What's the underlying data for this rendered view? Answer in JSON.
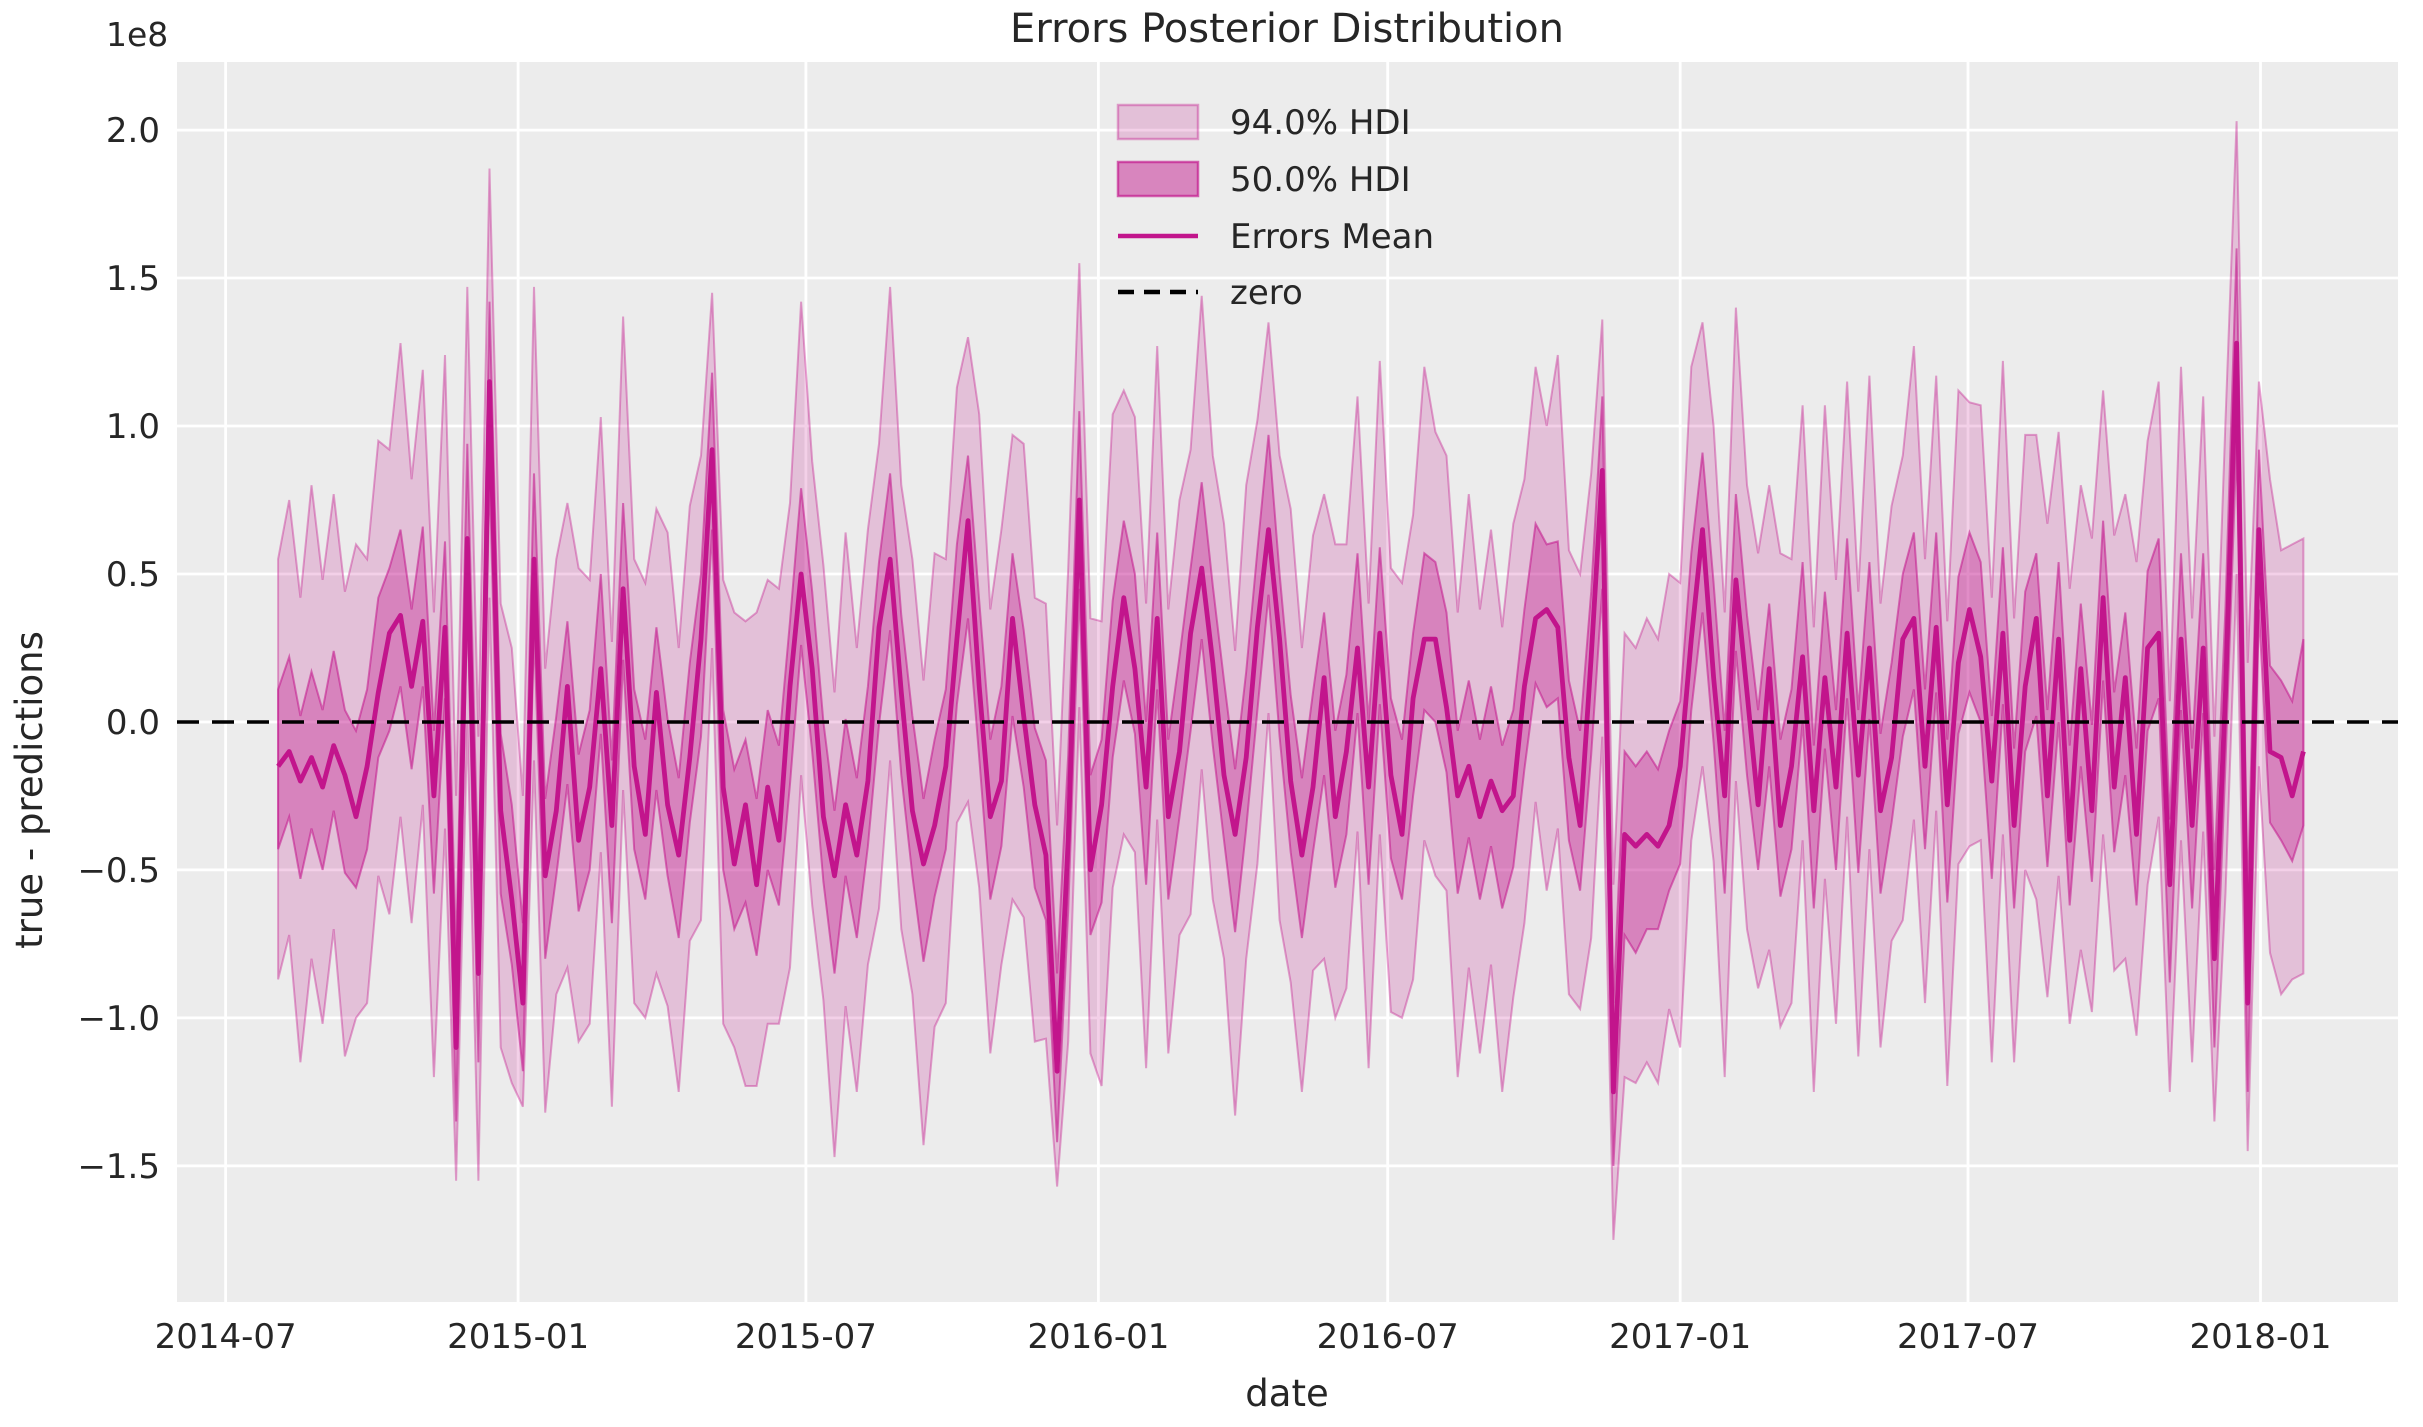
{
  "figure": {
    "title": "Errors Posterior Distribution",
    "xlabel": "date",
    "ylabel": "true - predictions",
    "y_offset_label": "1e8",
    "background_color": "#ffffff",
    "plot_background_color": "#ececec",
    "grid_color": "#ffffff",
    "text_color": "#262626",
    "accent_color": "#c2158c",
    "zero_line_color": "#000000"
  },
  "legend": {
    "items": [
      {
        "label": "94.0% HDI",
        "type": "patch",
        "color": "#c2158c",
        "opacity": 0.2
      },
      {
        "label": "50.0% HDI",
        "type": "patch",
        "color": "#c2158c",
        "opacity": 0.48
      },
      {
        "label": "Errors Mean",
        "type": "line",
        "color": "#c2158c",
        "opacity": 1
      },
      {
        "label": "zero",
        "type": "dashed-line",
        "color": "#000000",
        "opacity": 1
      }
    ]
  },
  "chart_data": {
    "type": "area",
    "title": "Errors Posterior Distribution",
    "xlabel": "date",
    "ylabel": "true - predictions",
    "y_unit": "1e8",
    "grid": true,
    "legend_position": "upper center-left",
    "x_start": "2014-08-03",
    "x_step_days": 7,
    "n_points": 183,
    "ylim": [
      -1.96,
      2.23
    ],
    "x_ticks": [
      {
        "label": "2014-07",
        "day_offset": -33
      },
      {
        "label": "2015-01",
        "day_offset": 151
      },
      {
        "label": "2015-07",
        "day_offset": 332
      },
      {
        "label": "2016-01",
        "day_offset": 516
      },
      {
        "label": "2016-07",
        "day_offset": 698
      },
      {
        "label": "2017-01",
        "day_offset": 882
      },
      {
        "label": "2017-07",
        "day_offset": 1063
      },
      {
        "label": "2018-01",
        "day_offset": 1247
      }
    ],
    "y_ticks": [
      {
        "label": "2.0",
        "value": 2.0
      },
      {
        "label": "1.5",
        "value": 1.5
      },
      {
        "label": "1.0",
        "value": 1.0
      },
      {
        "label": "0.5",
        "value": 0.5
      },
      {
        "label": "0.0",
        "value": 0.0
      },
      {
        "label": "−0.5",
        "value": -0.5
      },
      {
        "label": "−1.0",
        "value": -1.0
      },
      {
        "label": "−1.5",
        "value": -1.5
      }
    ],
    "series": [
      {
        "name": "Errors Mean",
        "type": "line",
        "values": [
          -0.15,
          -0.1,
          -0.2,
          -0.12,
          -0.22,
          -0.08,
          -0.18,
          -0.32,
          -0.15,
          0.1,
          0.3,
          0.36,
          0.12,
          0.34,
          -0.25,
          0.32,
          -1.1,
          0.62,
          -0.85,
          1.15,
          -0.3,
          -0.6,
          -0.95,
          0.55,
          -0.52,
          -0.3,
          0.12,
          -0.4,
          -0.22,
          0.18,
          -0.35,
          0.45,
          -0.15,
          -0.38,
          0.1,
          -0.28,
          -0.45,
          -0.12,
          0.28,
          0.92,
          -0.22,
          -0.48,
          -0.28,
          -0.55,
          -0.22,
          -0.4,
          0.12,
          0.5,
          0.18,
          -0.32,
          -0.52,
          -0.28,
          -0.45,
          -0.2,
          0.32,
          0.55,
          0.1,
          -0.3,
          -0.48,
          -0.35,
          -0.15,
          0.28,
          0.68,
          0.12,
          -0.32,
          -0.2,
          0.35,
          0.02,
          -0.28,
          -0.45,
          -1.18,
          -0.4,
          0.75,
          -0.5,
          -0.28,
          0.12,
          0.42,
          0.18,
          -0.22,
          0.35,
          -0.32,
          -0.1,
          0.3,
          0.52,
          0.2,
          -0.18,
          -0.38,
          -0.12,
          0.32,
          0.65,
          0.28,
          -0.2,
          -0.45,
          -0.22,
          0.15,
          -0.32,
          -0.1,
          0.25,
          -0.22,
          0.3,
          -0.18,
          -0.38,
          0.08,
          0.28,
          0.28,
          0.05,
          -0.25,
          -0.15,
          -0.32,
          -0.2,
          -0.3,
          -0.25,
          0.12,
          0.35,
          0.38,
          0.32,
          -0.12,
          -0.35,
          0.22,
          0.85,
          -1.25,
          -0.38,
          -0.42,
          -0.38,
          -0.42,
          -0.35,
          -0.15,
          0.28,
          0.65,
          0.15,
          -0.25,
          0.48,
          0.1,
          -0.28,
          0.18,
          -0.35,
          -0.15,
          0.22,
          -0.3,
          0.15,
          -0.22,
          0.3,
          -0.18,
          0.25,
          -0.3,
          -0.12,
          0.28,
          0.35,
          -0.15,
          0.32,
          -0.28,
          0.2,
          0.38,
          0.22,
          -0.2,
          0.3,
          -0.35,
          0.12,
          0.35,
          -0.25,
          0.28,
          -0.4,
          0.18,
          -0.3,
          0.42,
          -0.22,
          0.15,
          -0.38,
          0.25,
          0.3,
          -0.55,
          0.28,
          -0.35,
          0.25,
          -0.8,
          0.1,
          1.28,
          -0.95,
          0.65,
          -0.1,
          -0.12,
          -0.25,
          -0.1
        ]
      },
      {
        "name": "94.0% HDI",
        "type": "band",
        "upper": [
          0.55,
          0.75,
          0.42,
          0.8,
          0.48,
          0.77,
          0.44,
          0.6,
          0.55,
          0.95,
          0.92,
          1.28,
          0.82,
          1.19,
          0.37,
          1.24,
          -0.25,
          1.47,
          -0.05,
          1.87,
          0.4,
          0.25,
          -0.25,
          1.47,
          0.18,
          0.55,
          0.74,
          0.52,
          0.48,
          1.03,
          0.27,
          1.37,
          0.55,
          0.47,
          0.72,
          0.64,
          0.25,
          0.73,
          0.9,
          1.45,
          0.48,
          0.37,
          0.34,
          0.37,
          0.48,
          0.45,
          0.74,
          1.42,
          0.88,
          0.53,
          0.1,
          0.64,
          0.25,
          0.65,
          0.94,
          1.47,
          0.8,
          0.55,
          0.14,
          0.57,
          0.55,
          1.13,
          1.3,
          1.04,
          0.38,
          0.65,
          0.97,
          0.94,
          0.42,
          0.4,
          -0.35,
          0.52,
          1.55,
          0.35,
          0.34,
          1.04,
          1.12,
          1.03,
          0.4,
          1.27,
          0.38,
          0.75,
          0.92,
          1.44,
          0.9,
          0.67,
          0.24,
          0.8,
          1.02,
          1.35,
          0.9,
          0.72,
          0.25,
          0.63,
          0.77,
          0.6,
          0.6,
          1.1,
          0.4,
          1.22,
          0.52,
          0.47,
          0.7,
          1.2,
          0.98,
          0.9,
          0.37,
          0.77,
          0.38,
          0.65,
          0.32,
          0.67,
          0.82,
          1.2,
          1.0,
          1.24,
          0.58,
          0.5,
          0.84,
          1.36,
          -0.55,
          0.3,
          0.25,
          0.35,
          0.28,
          0.5,
          0.47,
          1.2,
          1.35,
          1.0,
          0.37,
          1.4,
          0.8,
          0.57,
          0.8,
          0.57,
          0.55,
          1.07,
          0.32,
          1.07,
          0.48,
          1.15,
          0.44,
          1.17,
          0.4,
          0.73,
          0.9,
          1.27,
          0.55,
          1.17,
          0.34,
          1.12,
          1.08,
          1.07,
          0.42,
          1.22,
          0.35,
          0.97,
          0.97,
          0.67,
          0.98,
          0.45,
          0.8,
          0.62,
          1.12,
          0.63,
          0.77,
          0.54,
          0.95,
          1.15,
          0.07,
          1.2,
          0.35,
          1.1,
          -0.05,
          1.02,
          2.03,
          0.2,
          1.15,
          0.82,
          0.58,
          0.6,
          0.62
        ],
        "lower": [
          -0.87,
          -0.72,
          -1.15,
          -0.8,
          -1.02,
          -0.7,
          -1.13,
          -1.0,
          -0.95,
          -0.52,
          -0.65,
          -0.32,
          -0.68,
          -0.28,
          -1.2,
          -0.36,
          -1.55,
          0.0,
          -1.55,
          0.42,
          -1.1,
          -1.22,
          -1.3,
          -0.13,
          -1.32,
          -0.92,
          -0.83,
          -1.08,
          -1.02,
          -0.44,
          -1.3,
          -0.23,
          -0.95,
          -1.0,
          -0.85,
          -0.96,
          -1.25,
          -0.74,
          -0.67,
          0.25,
          -1.02,
          -1.1,
          -1.23,
          -1.23,
          -1.02,
          -1.02,
          -0.83,
          -0.18,
          -0.62,
          -0.94,
          -1.47,
          -0.96,
          -1.25,
          -0.82,
          -0.63,
          -0.13,
          -0.7,
          -0.92,
          -1.43,
          -1.03,
          -0.95,
          -0.34,
          -0.27,
          -0.56,
          -1.12,
          -0.82,
          -0.6,
          -0.66,
          -1.08,
          -1.07,
          -1.57,
          -1.08,
          0.05,
          -1.12,
          -1.23,
          -0.56,
          -0.38,
          -0.44,
          -1.17,
          -0.33,
          -1.12,
          -0.72,
          -0.65,
          -0.16,
          -0.6,
          -0.8,
          -1.33,
          -0.8,
          -0.48,
          0.03,
          -0.67,
          -0.88,
          -1.25,
          -0.84,
          -0.8,
          -1.0,
          -0.9,
          -0.37,
          -1.17,
          -0.38,
          -0.98,
          -1.0,
          -0.87,
          -0.4,
          -0.52,
          -0.57,
          -1.2,
          -0.83,
          -1.12,
          -0.82,
          -1.25,
          -0.93,
          -0.68,
          -0.27,
          -0.57,
          -0.36,
          -0.92,
          -0.97,
          -0.73,
          -0.05,
          -1.75,
          -1.2,
          -1.22,
          -1.15,
          -1.22,
          -0.97,
          -1.1,
          -0.4,
          -0.15,
          -0.47,
          -1.2,
          -0.2,
          -0.7,
          -0.9,
          -0.77,
          -1.03,
          -0.95,
          -0.4,
          -1.25,
          -0.53,
          -1.02,
          -0.32,
          -1.13,
          -0.43,
          -1.1,
          -0.74,
          -0.67,
          -0.33,
          -0.95,
          -0.3,
          -1.23,
          -0.48,
          -0.42,
          -0.4,
          -1.15,
          -0.38,
          -1.15,
          -0.5,
          -0.6,
          -0.93,
          -0.52,
          -1.02,
          -0.77,
          -0.98,
          -0.38,
          -0.84,
          -0.8,
          -1.06,
          -0.55,
          -0.32,
          -1.25,
          -0.4,
          -1.15,
          -0.37,
          -1.35,
          -0.58,
          0.5,
          -1.45,
          -0.15,
          -0.78,
          -0.92,
          -0.87,
          -0.85
        ]
      },
      {
        "name": "50.0% HDI",
        "type": "band",
        "upper": [
          0.11,
          0.22,
          0.02,
          0.17,
          0.04,
          0.24,
          0.04,
          -0.03,
          0.11,
          0.42,
          0.52,
          0.65,
          0.38,
          0.66,
          -0.03,
          0.61,
          -0.78,
          0.94,
          -0.55,
          1.42,
          -0.04,
          -0.28,
          -0.68,
          0.84,
          -0.26,
          0.02,
          0.34,
          -0.11,
          0.04,
          0.5,
          -0.13,
          0.74,
          0.11,
          -0.06,
          0.32,
          0.01,
          -0.19,
          0.2,
          0.5,
          1.18,
          0.04,
          -0.16,
          -0.06,
          -0.26,
          0.04,
          -0.08,
          0.34,
          0.79,
          0.44,
          0.0,
          -0.3,
          0.01,
          -0.19,
          0.12,
          0.54,
          0.84,
          0.36,
          0.02,
          -0.26,
          -0.06,
          0.11,
          0.6,
          0.9,
          0.41,
          -0.06,
          0.12,
          0.57,
          0.31,
          -0.02,
          -0.13,
          -0.85,
          -0.11,
          1.05,
          -0.18,
          -0.06,
          0.41,
          0.68,
          0.5,
          0.0,
          0.64,
          -0.06,
          0.22,
          0.52,
          0.81,
          0.46,
          0.14,
          -0.16,
          0.17,
          0.58,
          0.97,
          0.5,
          0.09,
          -0.19,
          0.1,
          0.37,
          -0.03,
          0.16,
          0.57,
          0.0,
          0.59,
          0.08,
          -0.06,
          0.3,
          0.57,
          0.54,
          0.37,
          -0.03,
          0.14,
          -0.06,
          0.12,
          -0.08,
          0.04,
          0.38,
          0.67,
          0.6,
          0.61,
          0.14,
          -0.03,
          0.44,
          1.1,
          -0.95,
          -0.1,
          -0.15,
          -0.1,
          -0.16,
          -0.03,
          0.07,
          0.57,
          0.91,
          0.47,
          -0.03,
          0.77,
          0.36,
          0.04,
          0.4,
          -0.06,
          0.11,
          0.54,
          -0.08,
          0.44,
          0.04,
          0.62,
          0.04,
          0.54,
          -0.04,
          0.2,
          0.5,
          0.64,
          0.11,
          0.64,
          -0.06,
          0.49,
          0.64,
          0.54,
          0.02,
          0.59,
          -0.09,
          0.44,
          0.57,
          0.04,
          0.54,
          -0.08,
          0.4,
          -0.01,
          0.68,
          0.1,
          0.37,
          -0.09,
          0.51,
          0.62,
          -0.33,
          0.57,
          -0.09,
          0.57,
          -0.5,
          0.39,
          1.6,
          -0.6,
          0.92,
          0.19,
          0.14,
          0.07,
          0.28
        ],
        "lower": [
          -0.43,
          -0.32,
          -0.53,
          -0.36,
          -0.5,
          -0.3,
          -0.51,
          -0.56,
          -0.43,
          -0.12,
          -0.03,
          0.12,
          -0.16,
          0.12,
          -0.58,
          0.08,
          -1.35,
          0.4,
          -1.15,
          0.85,
          -0.58,
          -0.82,
          -1.18,
          0.31,
          -0.8,
          -0.52,
          -0.21,
          -0.64,
          -0.5,
          -0.04,
          -0.68,
          0.21,
          -0.43,
          -0.6,
          -0.23,
          -0.52,
          -0.73,
          -0.34,
          -0.05,
          0.65,
          -0.5,
          -0.7,
          -0.61,
          -0.79,
          -0.5,
          -0.62,
          -0.21,
          0.26,
          -0.1,
          -0.54,
          -0.85,
          -0.52,
          -0.73,
          -0.42,
          -0.01,
          0.31,
          -0.18,
          -0.52,
          -0.81,
          -0.59,
          -0.43,
          0.06,
          0.35,
          -0.12,
          -0.6,
          -0.42,
          0.02,
          -0.22,
          -0.56,
          -0.67,
          -1.42,
          -0.64,
          0.45,
          -0.72,
          -0.61,
          -0.12,
          0.14,
          -0.04,
          -0.55,
          0.11,
          -0.6,
          -0.32,
          -0.03,
          0.28,
          -0.08,
          -0.4,
          -0.71,
          -0.36,
          0.04,
          0.43,
          -0.05,
          -0.44,
          -0.73,
          -0.44,
          -0.18,
          -0.56,
          -0.38,
          0.03,
          -0.55,
          0.06,
          -0.46,
          -0.6,
          -0.25,
          0.04,
          0.0,
          -0.17,
          -0.58,
          -0.39,
          -0.6,
          -0.42,
          -0.63,
          -0.49,
          -0.16,
          0.13,
          0.05,
          0.08,
          -0.4,
          -0.57,
          -0.11,
          0.45,
          -1.5,
          -0.72,
          -0.78,
          -0.7,
          -0.7,
          -0.57,
          -0.48,
          0.04,
          0.37,
          -0.07,
          -0.58,
          0.24,
          -0.18,
          -0.5,
          -0.15,
          -0.59,
          -0.43,
          0.0,
          -0.63,
          -0.09,
          -0.5,
          0.08,
          -0.51,
          0.01,
          -0.58,
          -0.34,
          -0.05,
          0.11,
          -0.43,
          0.1,
          -0.61,
          -0.04,
          0.1,
          0.0,
          -0.53,
          0.06,
          -0.63,
          -0.1,
          0.02,
          -0.49,
          0.0,
          -0.62,
          -0.15,
          -0.54,
          0.14,
          -0.44,
          -0.18,
          -0.62,
          -0.03,
          0.08,
          -0.88,
          0.04,
          -0.63,
          0.03,
          -1.1,
          -0.14,
          0.95,
          -1.25,
          0.38,
          -0.34,
          -0.4,
          -0.47,
          -0.35
        ]
      },
      {
        "name": "zero",
        "type": "hline",
        "value": 0
      }
    ]
  }
}
